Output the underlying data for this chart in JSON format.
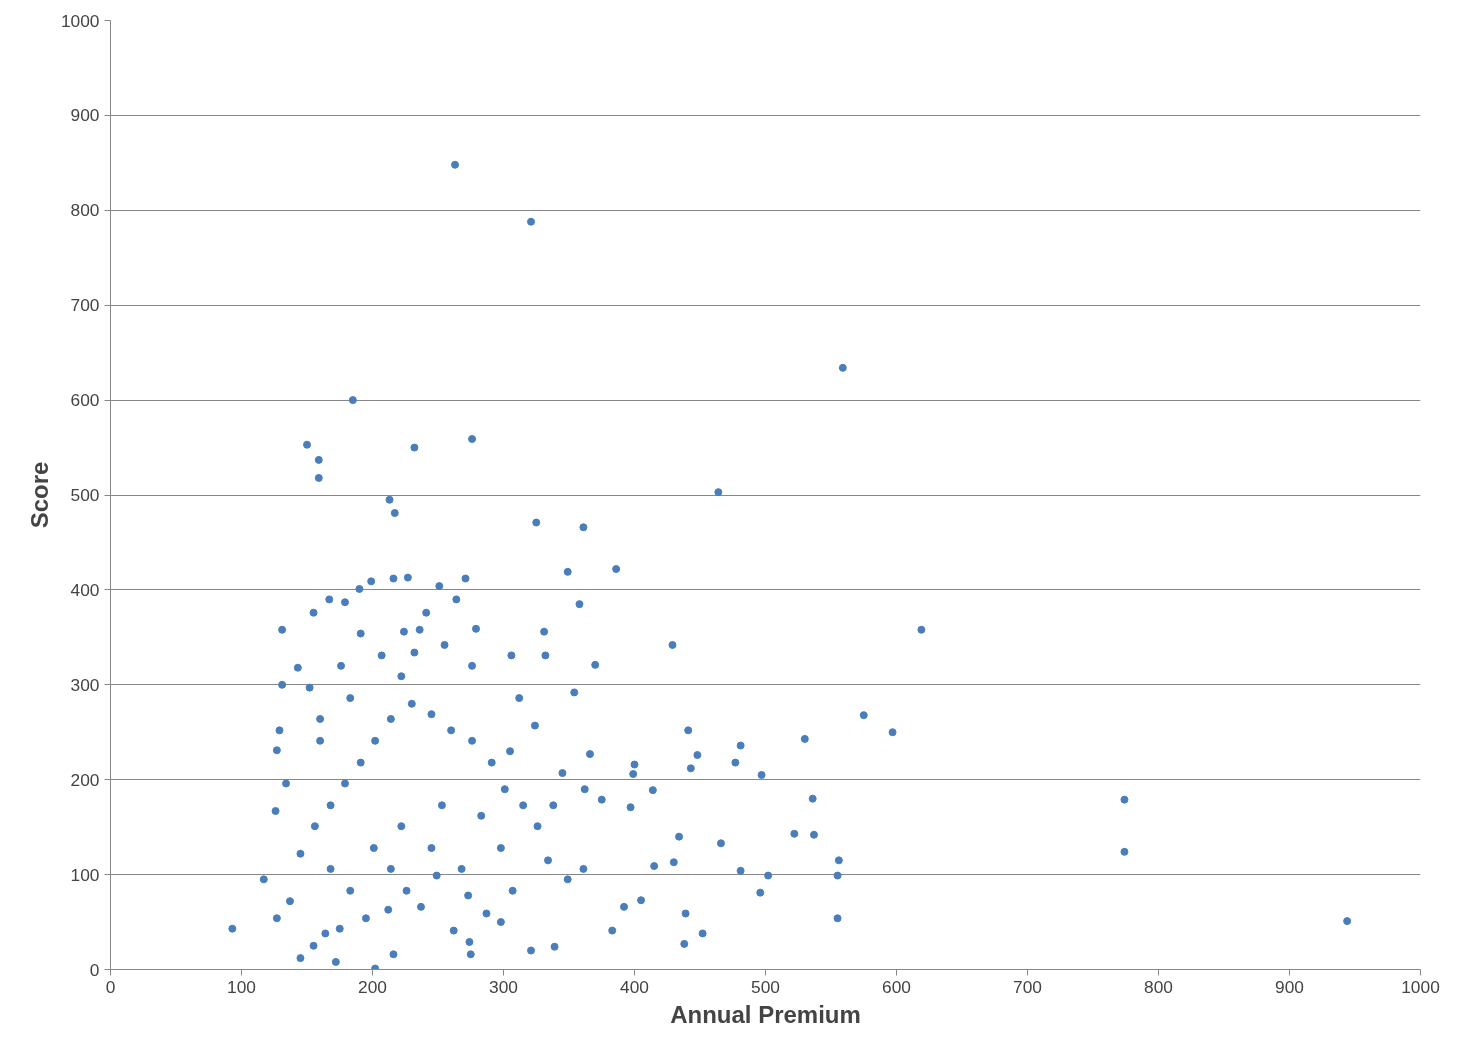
{
  "chart_data": {
    "type": "scatter",
    "xlabel": "Annual Premium",
    "ylabel": "Score",
    "xlim": [
      0,
      1000
    ],
    "ylim": [
      0,
      1000
    ],
    "xticks": [
      0,
      100,
      200,
      300,
      400,
      500,
      600,
      700,
      800,
      900,
      1000
    ],
    "yticks": [
      0,
      100,
      200,
      300,
      400,
      500,
      600,
      700,
      800,
      900,
      1000
    ],
    "grid": "y",
    "marker": "circle",
    "series": [
      {
        "color": "#4a7ebb",
        "x": [
          263,
          321,
          559,
          185,
          150,
          159,
          159,
          232,
          276,
          213,
          217,
          325,
          361,
          464,
          349,
          386,
          619,
          575,
          597,
          530,
          536,
          522,
          537,
          556,
          555,
          555,
          774,
          774,
          944,
          93,
          117,
          127,
          481,
          477,
          497,
          466,
          502,
          481,
          496,
          441,
          448,
          443,
          429,
          414,
          400,
          399,
          397,
          415,
          405,
          434,
          430,
          439,
          438,
          452,
          370,
          358,
          354,
          366,
          362,
          375,
          392,
          383,
          339,
          321,
          275,
          202,
          172,
          145,
          216,
          274,
          262,
          131,
          131,
          127,
          126,
          134,
          143,
          155,
          167,
          179,
          190,
          199,
          216,
          227,
          236,
          224,
          232,
          255,
          264,
          271,
          251,
          279,
          276,
          306,
          331,
          332,
          312,
          324,
          305,
          301,
          326,
          334,
          349,
          361,
          307,
          298,
          287,
          273,
          249,
          237,
          226,
          212,
          195,
          175,
          164,
          155,
          137,
          145,
          156,
          168,
          179,
          191,
          202,
          214,
          230,
          245,
          260,
          276,
          291,
          283,
          253,
          222,
          201,
          168,
          183,
          214,
          245,
          268,
          298,
          315,
          338,
          345,
          160,
          152,
          176,
          191,
          207,
          222,
          183,
          160,
          129,
          241
        ],
        "values": [
          848,
          788,
          634,
          600,
          553,
          537,
          518,
          550,
          559,
          495,
          481,
          471,
          466,
          503,
          419,
          422,
          358,
          268,
          250,
          243,
          180,
          143,
          142,
          115,
          99,
          54,
          179,
          124,
          51,
          43,
          95,
          54,
          236,
          218,
          205,
          133,
          99,
          104,
          81,
          252,
          226,
          212,
          342,
          189,
          216,
          206,
          171,
          109,
          73,
          140,
          113,
          59,
          27,
          38,
          321,
          385,
          292,
          227,
          190,
          179,
          66,
          41,
          24,
          20,
          16,
          1,
          8,
          12,
          16,
          29,
          41,
          300,
          358,
          231,
          167,
          196,
          318,
          376,
          390,
          387,
          401,
          409,
          412,
          413,
          358,
          356,
          334,
          342,
          390,
          412,
          404,
          359,
          320,
          331,
          356,
          331,
          286,
          257,
          230,
          190,
          151,
          115,
          95,
          106,
          83,
          50,
          59,
          78,
          99,
          66,
          83,
          63,
          54,
          43,
          38,
          25,
          72,
          122,
          151,
          173,
          196,
          218,
          241,
          264,
          280,
          269,
          252,
          241,
          218,
          162,
          173,
          151,
          128,
          106,
          83,
          106,
          128,
          106,
          128,
          173,
          173,
          207,
          241,
          297,
          320,
          354,
          331,
          309,
          286,
          264,
          252,
          376
        ]
      }
    ]
  }
}
